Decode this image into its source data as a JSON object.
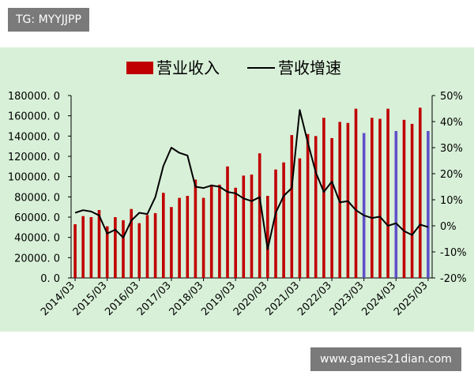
{
  "overlay": {
    "tg_label": "TG: MYYJJPP",
    "watermark": "www.games21dian.com"
  },
  "chart_data": {
    "type": "bar+line",
    "legend": [
      "营业收入",
      "营收增速"
    ],
    "legend_position": "top",
    "left_axis": {
      "ylim": [
        0,
        180000
      ],
      "ticks": [
        "0. 0",
        "20000. 0",
        "40000. 0",
        "60000. 0",
        "80000. 0",
        "100000. 0",
        "120000. 0",
        "140000. 0",
        "160000. 0",
        "180000. 0"
      ]
    },
    "right_axis": {
      "ylim": [
        -20,
        50
      ],
      "ticks": [
        "-20%",
        "-10%",
        "0%",
        "10%",
        "20%",
        "30%",
        "40%",
        "50%"
      ]
    },
    "x_tick_labels": [
      "2014/03",
      "2015/03",
      "2016/03",
      "2017/03",
      "2018/03",
      "2019/03",
      "2020/03",
      "2021/03",
      "2022/03",
      "2023/03",
      "2024/03",
      "2025/03"
    ],
    "colors": {
      "bar": "#c00000",
      "highlight_bar": "#6050c8",
      "line": "#000000",
      "panel": "#d8f0d8"
    },
    "revenue": [
      53000,
      61000,
      60000,
      67000,
      51000,
      60000,
      57000,
      68000,
      54000,
      62000,
      64000,
      84000,
      70000,
      79000,
      81000,
      97000,
      79000,
      92000,
      92000,
      110000,
      89000,
      101000,
      102000,
      123000,
      81000,
      107000,
      114000,
      141000,
      118000,
      142000,
      140000,
      158000,
      138000,
      154000,
      153000,
      167000,
      143000,
      158000,
      157000,
      167000,
      145000,
      156000,
      152000,
      168000,
      145000
    ],
    "growth_pct": [
      5,
      6,
      5.5,
      4,
      -3,
      -1.5,
      -4.5,
      2,
      5,
      4.5,
      11,
      23,
      30,
      28,
      27,
      15,
      14.5,
      15.5,
      15,
      13,
      12.5,
      10.5,
      9.5,
      11,
      -9,
      5,
      11.5,
      14.5,
      44.5,
      32,
      20.5,
      13,
      17,
      9,
      9.5,
      6,
      4,
      3,
      3.5,
      0,
      1,
      -2,
      -3.5,
      0.5,
      -0.5
    ],
    "highlight_indices": [
      36,
      40,
      44
    ]
  }
}
